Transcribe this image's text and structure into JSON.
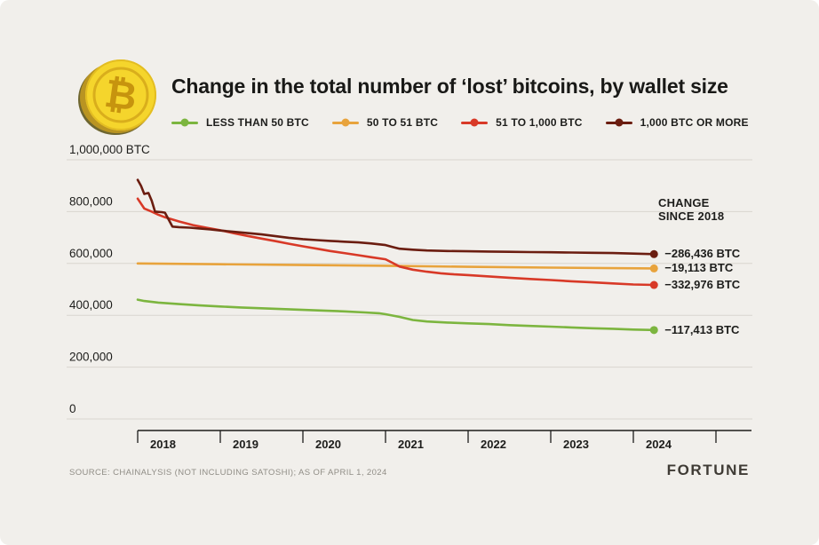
{
  "chart_data": {
    "type": "line",
    "title": "Change in the total number of ‘lost’ bitcoins, by wallet size",
    "xlabel": "",
    "ylabel": "",
    "xlim": [
      2018,
      2024.4
    ],
    "ylim": [
      0,
      1000000
    ],
    "grid": "horizontal",
    "legend_position": "top",
    "x_ticks": [
      "2018",
      "2019",
      "2020",
      "2021",
      "2022",
      "2023",
      "2024"
    ],
    "y_ticks": [
      1000000,
      800000,
      600000,
      400000,
      200000,
      0
    ],
    "y_tick_labels": [
      "1,000,000 BTC",
      "800,000",
      "600,000",
      "400,000",
      "200,000",
      "0"
    ],
    "annotation": {
      "line1": "CHANGE",
      "line2": "SINCE 2018"
    },
    "series": [
      {
        "name": "LESS THAN 50 BTC",
        "color": "#7cb53f",
        "change_label": "−117,413 BTC",
        "x": [
          2018,
          2018.08,
          2018.25,
          2018.5,
          2018.75,
          2019,
          2019.25,
          2019.5,
          2019.75,
          2020,
          2020.25,
          2020.5,
          2020.75,
          2020.92,
          2021,
          2021.17,
          2021.33,
          2021.5,
          2021.75,
          2022,
          2022.25,
          2022.5,
          2022.75,
          2023,
          2023.25,
          2023.5,
          2023.75,
          2024,
          2024.25
        ],
        "values": [
          460413,
          455000,
          449000,
          443000,
          438000,
          434000,
          430000,
          427000,
          424000,
          421000,
          418000,
          415000,
          411000,
          408000,
          404000,
          394000,
          382000,
          376000,
          372000,
          369000,
          366000,
          362000,
          359000,
          356000,
          353000,
          350000,
          348000,
          345000,
          343000
        ]
      },
      {
        "name": "50 TO 51 BTC",
        "color": "#e8a33c",
        "change_label": "−19,113 BTC",
        "x": [
          2018,
          2019,
          2020,
          2021,
          2022,
          2023,
          2024.25
        ],
        "values": [
          600000,
          597000,
          594000,
          591000,
          587000,
          584000,
          580887
        ]
      },
      {
        "name": "51 TO 1,000 BTC",
        "color": "#d83927",
        "change_label": "−332,976 BTC",
        "x": [
          2018,
          2018.08,
          2018.17,
          2018.25,
          2018.33,
          2018.5,
          2018.67,
          2018.83,
          2019,
          2019.17,
          2019.33,
          2019.5,
          2019.67,
          2019.83,
          2020,
          2020.17,
          2020.33,
          2020.5,
          2020.67,
          2020.83,
          2021,
          2021.08,
          2021.17,
          2021.33,
          2021.5,
          2021.67,
          2021.83,
          2022,
          2022.25,
          2022.5,
          2022.75,
          2023,
          2023.25,
          2023.5,
          2023.75,
          2024,
          2024.25
        ],
        "values": [
          850000,
          812000,
          800000,
          788000,
          778000,
          762000,
          748000,
          738000,
          728000,
          716000,
          706000,
          696000,
          686000,
          676000,
          666000,
          657000,
          648000,
          640000,
          632000,
          624000,
          616000,
          603000,
          588000,
          576000,
          568000,
          562000,
          558000,
          555000,
          550000,
          545000,
          540000,
          536000,
          531000,
          527000,
          523000,
          519000,
          517024
        ]
      },
      {
        "name": "1,000 BTC OR MORE",
        "color": "#6b1d10",
        "change_label": "−286,436 BTC",
        "x": [
          2018,
          2018.04,
          2018.08,
          2018.13,
          2018.17,
          2018.21,
          2018.29,
          2018.33,
          2018.42,
          2018.5,
          2018.63,
          2018.75,
          2018.88,
          2019,
          2019.17,
          2019.33,
          2019.5,
          2019.67,
          2019.83,
          2020,
          2020.17,
          2020.33,
          2020.5,
          2020.67,
          2020.83,
          2021,
          2021.08,
          2021.17,
          2021.33,
          2021.5,
          2021.75,
          2022,
          2022.25,
          2022.5,
          2022.75,
          2023,
          2023.25,
          2023.5,
          2023.75,
          2024,
          2024.25
        ],
        "values": [
          922436,
          900000,
          868000,
          872000,
          842000,
          800000,
          798000,
          796000,
          742000,
          740000,
          738000,
          735000,
          731000,
          727000,
          722000,
          717000,
          712000,
          705000,
          699000,
          694000,
          690000,
          687000,
          684000,
          681000,
          677000,
          671000,
          664000,
          657000,
          653000,
          650000,
          648000,
          647000,
          646000,
          645000,
          644000,
          643000,
          642000,
          641000,
          640000,
          638000,
          636000
        ]
      }
    ]
  },
  "footer": {
    "source": "SOURCE: CHAINALYSIS (NOT INCLUDING SATOSHI); AS OF APRIL 1, 2024",
    "brand": "FORTUNE"
  },
  "colors": {
    "background": "#f1efeb",
    "gridline": "#d9d6cf",
    "axis": "#1d1d1b",
    "text": "#1d1d1b",
    "coin_gold": "#f5d52c",
    "coin_rim": "#d9ae1c",
    "coin_symbol": "#c7940e"
  }
}
